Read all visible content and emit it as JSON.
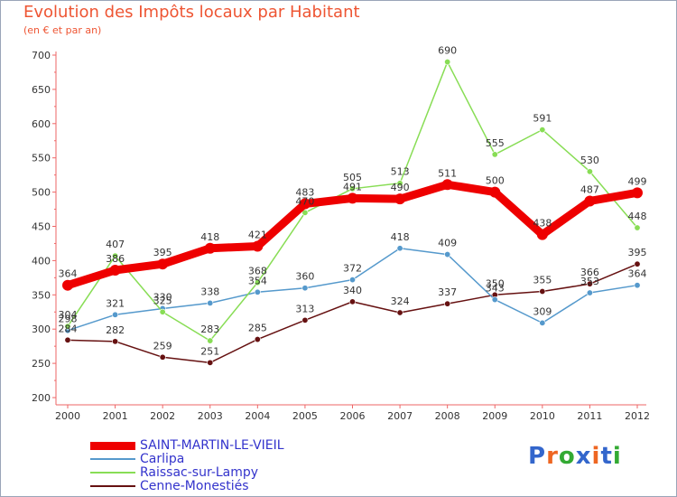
{
  "header": {
    "title": "Evolution des Impôts locaux par Habitant",
    "subtitle": "(en € et par an)"
  },
  "logo": {
    "text": "Proxiti",
    "letters": [
      "P",
      "r",
      "o",
      "x",
      "i",
      "t",
      "i"
    ],
    "colors": [
      "#3366cc",
      "#ee6622",
      "#33aa33",
      "#3366cc",
      "#ee6622",
      "#3366cc",
      "#33aa33"
    ]
  },
  "chart_data": {
    "type": "line",
    "title": "Evolution des Impôts locaux par Habitant",
    "subtitle": "(en € et par an)",
    "xlabel": "",
    "ylabel": "",
    "ylim": [
      200,
      700
    ],
    "yticks": [
      200,
      250,
      300,
      350,
      400,
      450,
      500,
      550,
      600,
      650,
      700
    ],
    "x": [
      "2000",
      "2001",
      "2002",
      "2003",
      "2004",
      "2005",
      "2006",
      "2007",
      "2008",
      "2009",
      "2010",
      "2011",
      "2012"
    ],
    "grid": false,
    "legend": "bottom-left",
    "series": [
      {
        "name": "SAINT-MARTIN-LE-VIEIL",
        "color": "#ee0000",
        "width": 9,
        "values": [
          364,
          386,
          395,
          418,
          421,
          483,
          491,
          490,
          511,
          500,
          438,
          487,
          499
        ]
      },
      {
        "name": "Carlipa",
        "color": "#5599cc",
        "width": 1.5,
        "values": [
          298,
          321,
          330,
          338,
          354,
          360,
          372,
          418,
          409,
          343,
          309,
          353,
          364
        ]
      },
      {
        "name": "Raissac-sur-Lampy",
        "color": "#88dd55",
        "width": 1.5,
        "values": [
          304,
          407,
          325,
          283,
          368,
          470,
          505,
          513,
          690,
          555,
          591,
          530,
          448
        ]
      },
      {
        "name": "Cenne-Monestiés",
        "color": "#661111",
        "width": 1.5,
        "values": [
          284,
          282,
          259,
          251,
          285,
          313,
          340,
          324,
          337,
          350,
          355,
          366,
          395
        ]
      }
    ]
  }
}
